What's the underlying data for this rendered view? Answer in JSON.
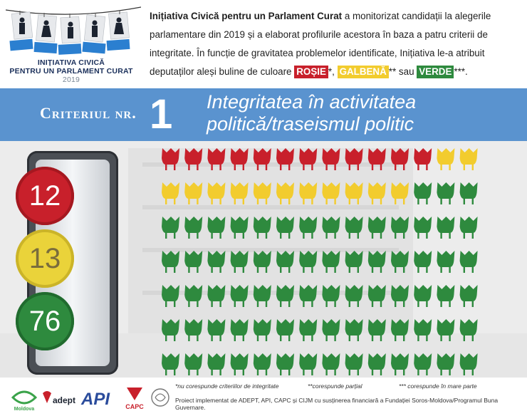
{
  "logo": {
    "line1": "INIȚIATIVA CIVICĂ",
    "line2": "PENTRU UN PARLAMENT CURAT",
    "year": "2019"
  },
  "intro": {
    "bold_lead": "Inițiativa Civică pentru un Parlament Curat",
    "text1": " a monitorizat candidații la alegerile parlamentare din 2019 și a elaborat profilurile acestora în baza a patru criterii de integritate. În funcție de gravitatea problemelor identificate, Inițiativa le-a atribuit deputaților aleși buline de culoare ",
    "tag_red": "ROȘIE",
    "sep1": "*, ",
    "tag_yellow": "GALBENĂ",
    "sep2": "** sau ",
    "tag_green": "VERDE",
    "sep3": "***."
  },
  "banner": {
    "label": "Criteriul nr.",
    "number": "1",
    "title": "Integritatea în activitatea politică/traseismul politic"
  },
  "counts": {
    "red": "12",
    "yellow": "13",
    "green": "76"
  },
  "chairs": {
    "red": 12,
    "yellow": 13,
    "green": 76,
    "per_row": 14
  },
  "colors": {
    "red": "#c8202b",
    "yellow": "#f2cc2e",
    "green": "#2e8a3e",
    "banner": "#5a93cf"
  },
  "footer": {
    "note_red": "*nu corespunde criteriilor de integritate",
    "note_yellow": "**corespunde parțial",
    "note_green": "*** corespunde în mare parte",
    "project": "Proiect implementat de ADEPT, API, CAPC și CIJM cu susținerea financiară a Fundației Soros-Moldova/Programul Buna Guvernare.",
    "logos": [
      "Moldova",
      "adept",
      "API",
      "CAPC"
    ]
  }
}
